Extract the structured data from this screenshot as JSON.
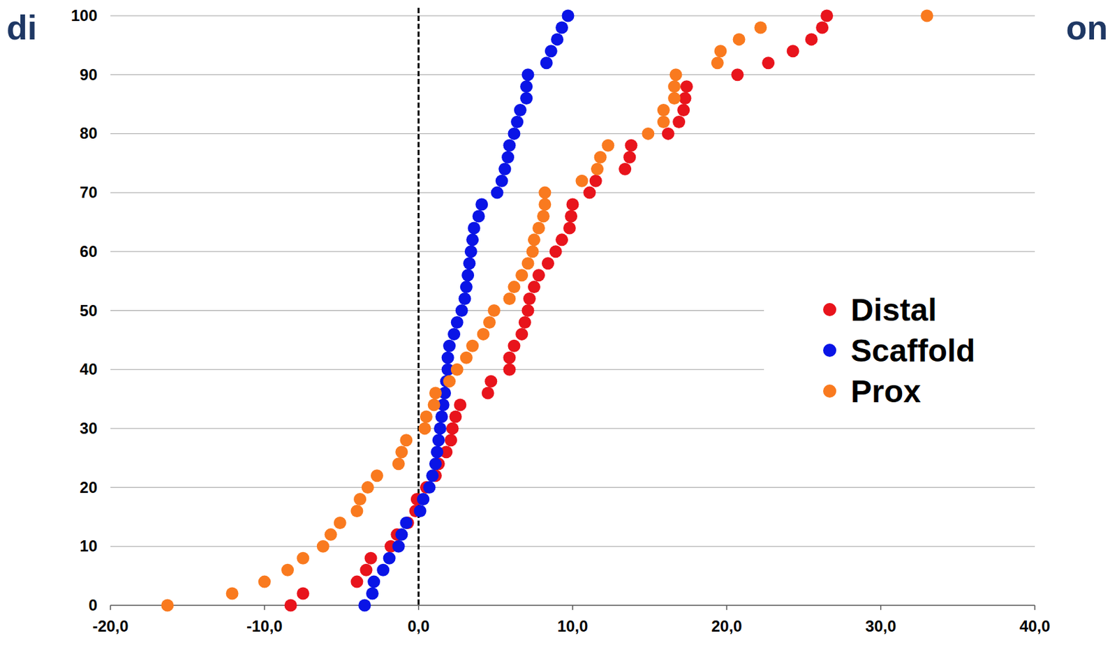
{
  "chart_data": {
    "type": "scatter",
    "annotations": [
      "di",
      "on"
    ],
    "xlim": [
      -20,
      40
    ],
    "xticks": [
      {
        "value": -20,
        "label": "-20,0"
      },
      {
        "value": -10,
        "label": "-10,0"
      },
      {
        "value": 0,
        "label": "0,0"
      },
      {
        "value": 10,
        "label": "10,0"
      },
      {
        "value": 20,
        "label": "20,0"
      },
      {
        "value": 30,
        "label": "30,0"
      },
      {
        "value": 40,
        "label": "40,0"
      }
    ],
    "ylim": [
      0,
      100
    ],
    "yticks": [
      0,
      10,
      20,
      30,
      40,
      50,
      60,
      70,
      80,
      90,
      100
    ],
    "grid": true,
    "legend": "right",
    "reference_x": 0,
    "marker": "circle",
    "series": [
      {
        "name": "Distal",
        "color": "#e8141c",
        "x": [
          -8.3,
          -7.5,
          -4.0,
          -3.4,
          -3.1,
          -1.8,
          -1.4,
          -0.7,
          -0.2,
          -0.1,
          0.5,
          1.1,
          1.3,
          1.8,
          2.1,
          2.2,
          2.4,
          2.7,
          4.5,
          4.7,
          5.9,
          5.9,
          6.2,
          6.7,
          6.9,
          7.1,
          7.2,
          7.5,
          7.8,
          8.4,
          8.9,
          9.3,
          9.8,
          9.9,
          10.0,
          11.1,
          11.5,
          13.4,
          13.7,
          13.8,
          16.2,
          16.9,
          17.2,
          17.3,
          17.4,
          20.7,
          22.7,
          24.3,
          25.5,
          26.2,
          26.5
        ],
        "values": [
          0,
          2,
          4,
          6,
          8,
          10,
          12,
          14,
          16,
          18,
          20,
          22,
          24,
          26,
          28,
          30,
          32,
          34,
          36,
          38,
          40,
          42,
          44,
          46,
          48,
          50,
          52,
          54,
          56,
          58,
          60,
          62,
          64,
          66,
          68,
          70,
          72,
          74,
          76,
          78,
          80,
          82,
          84,
          86,
          88,
          90,
          92,
          94,
          96,
          98,
          100
        ]
      },
      {
        "name": "Scaffold",
        "color": "#0a14e6",
        "x": [
          -3.5,
          -3.0,
          -2.9,
          -2.3,
          -1.9,
          -1.3,
          -1.1,
          -0.8,
          0.1,
          0.3,
          0.7,
          0.9,
          1.1,
          1.2,
          1.3,
          1.4,
          1.5,
          1.6,
          1.7,
          1.8,
          1.9,
          1.9,
          2.0,
          2.3,
          2.5,
          2.8,
          3.0,
          3.1,
          3.2,
          3.3,
          3.4,
          3.5,
          3.6,
          3.9,
          4.1,
          5.1,
          5.4,
          5.6,
          5.8,
          5.9,
          6.2,
          6.4,
          6.6,
          7.0,
          7.0,
          7.1,
          8.3,
          8.6,
          9.0,
          9.3,
          9.7
        ],
        "values": [
          0,
          2,
          4,
          6,
          8,
          10,
          12,
          14,
          16,
          18,
          20,
          22,
          24,
          26,
          28,
          30,
          32,
          34,
          36,
          38,
          40,
          42,
          44,
          46,
          48,
          50,
          52,
          54,
          56,
          58,
          60,
          62,
          64,
          66,
          68,
          70,
          72,
          74,
          76,
          78,
          80,
          82,
          84,
          86,
          88,
          90,
          92,
          94,
          96,
          98,
          100
        ]
      },
      {
        "name": "Prox",
        "color": "#f97a1f",
        "x": [
          -16.3,
          -12.1,
          -10.0,
          -8.5,
          -7.5,
          -6.2,
          -5.7,
          -5.1,
          -4.0,
          -3.8,
          -3.3,
          -2.7,
          -1.3,
          -1.1,
          -0.8,
          0.4,
          0.5,
          1.0,
          1.1,
          2.0,
          2.5,
          3.1,
          3.5,
          4.2,
          4.6,
          4.9,
          5.9,
          6.2,
          6.7,
          7.1,
          7.4,
          7.5,
          7.8,
          8.1,
          8.2,
          8.2,
          10.6,
          11.6,
          11.8,
          12.3,
          14.9,
          15.9,
          15.9,
          16.6,
          16.6,
          16.7,
          19.4,
          19.6,
          20.8,
          22.2,
          33.0
        ],
        "values": [
          0,
          2,
          4,
          6,
          8,
          10,
          12,
          14,
          16,
          18,
          20,
          22,
          24,
          26,
          28,
          30,
          32,
          34,
          36,
          38,
          40,
          42,
          44,
          46,
          48,
          50,
          52,
          54,
          56,
          58,
          60,
          62,
          64,
          66,
          68,
          70,
          72,
          74,
          76,
          78,
          80,
          82,
          84,
          86,
          88,
          90,
          92,
          94,
          96,
          98,
          100
        ]
      }
    ]
  }
}
